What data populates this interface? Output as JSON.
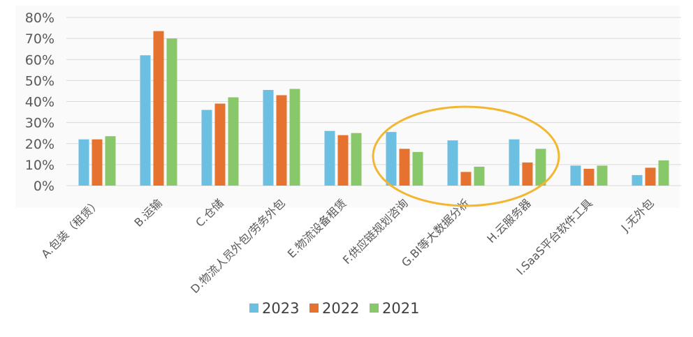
{
  "chart_data": {
    "type": "bar",
    "categories": [
      "A.包装（租赁）",
      "B.运输",
      "C.仓储",
      "D.物流人员外包/劳务外包",
      "E.物流设备租赁",
      "F.供应链规划咨询",
      "G.BI等大数据分析",
      "H.云服务器",
      "I.SaaS平台软件工具",
      "J.无外包"
    ],
    "series": [
      {
        "name": "2023",
        "color": "#6BBFE0",
        "values": [
          22,
          62,
          36,
          45.5,
          26,
          25.5,
          21.5,
          22,
          9.5,
          5
        ]
      },
      {
        "name": "2022",
        "color": "#E6722F",
        "values": [
          22,
          73.5,
          39,
          43,
          24,
          17.5,
          6.5,
          11,
          8,
          8.5
        ]
      },
      {
        "name": "2021",
        "color": "#88C76A",
        "values": [
          23.5,
          70,
          42,
          46,
          25,
          16,
          9,
          17.5,
          9.5,
          12
        ]
      }
    ],
    "ylim": [
      0,
      80
    ],
    "yticks": [
      "0%",
      "10%",
      "20%",
      "30%",
      "40%",
      "50%",
      "60%",
      "70%",
      "80%"
    ],
    "grid": true,
    "legend_position": "bottom",
    "annotation": {
      "shape": "ellipse",
      "color": "#F2B631",
      "around": [
        "F.供应链规划咨询",
        "G.BI等大数据分析",
        "H.云服务器"
      ]
    }
  }
}
